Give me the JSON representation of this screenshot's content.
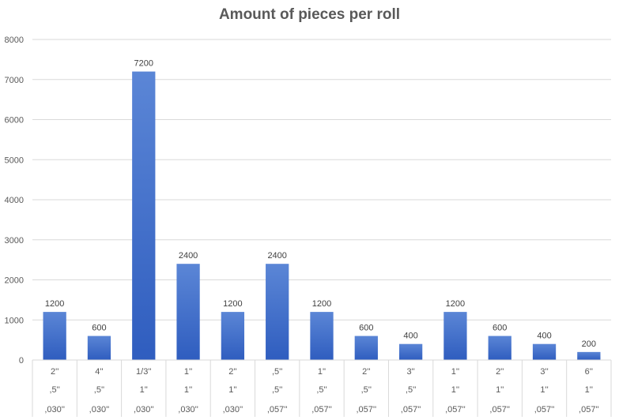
{
  "chart_data": {
    "type": "bar",
    "title": "Amount of pieces per roll",
    "xlabel": "",
    "ylabel": "",
    "ylim": [
      0,
      8000
    ],
    "yticks": [
      0,
      1000,
      2000,
      3000,
      4000,
      5000,
      6000,
      7000,
      8000
    ],
    "grid": true,
    "categories": [
      [
        "2''",
        ",5''",
        ",030''"
      ],
      [
        "4''",
        ",5''",
        ",030''"
      ],
      [
        "1/3''",
        "1''",
        ",030''"
      ],
      [
        "1''",
        "1''",
        ",030''"
      ],
      [
        "2''",
        "1''",
        ",030''"
      ],
      [
        ",5''",
        ",5''",
        ",057''"
      ],
      [
        "1''",
        ",5''",
        ",057''"
      ],
      [
        "2''",
        ",5''",
        ",057''"
      ],
      [
        "3''",
        ",5''",
        ",057''"
      ],
      [
        "1''",
        "1''",
        ",057''"
      ],
      [
        "2''",
        "1''",
        ",057''"
      ],
      [
        "3''",
        "1''",
        ",057''"
      ],
      [
        "6''",
        "1''",
        ",057''"
      ]
    ],
    "values": [
      1200,
      600,
      7200,
      2400,
      1200,
      2400,
      1200,
      600,
      400,
      1200,
      600,
      400,
      200
    ],
    "colors": {
      "bar_top": "#5b86d6",
      "bar_bottom": "#2f5dbf",
      "grid": "#d9d9d9",
      "text": "#595959"
    }
  }
}
